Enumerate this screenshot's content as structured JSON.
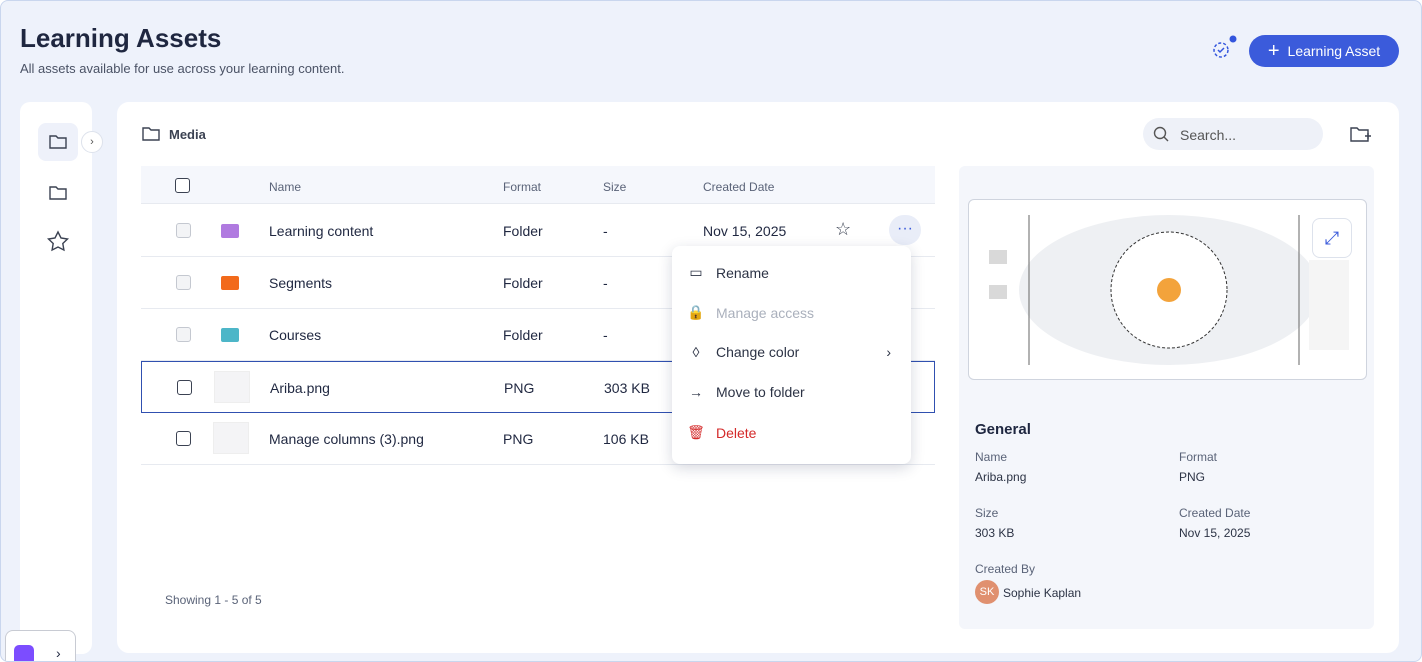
{
  "header": {
    "title": "Learning Assets",
    "subtitle": "All assets available for use across your learning content.",
    "button": "Learning Asset"
  },
  "breadcrumb": "Media",
  "search_placeholder": "Search...",
  "table": {
    "columns": [
      "Name",
      "Format",
      "Size",
      "Created Date"
    ],
    "rows": [
      {
        "name": "Learning content",
        "format": "Folder",
        "size": "-",
        "date": "Nov 15, 2025",
        "color": "#b07ae0",
        "kind": "folder"
      },
      {
        "name": "Segments",
        "format": "Folder",
        "size": "-",
        "color": "#f26a1b",
        "kind": "folder"
      },
      {
        "name": "Courses",
        "format": "Folder",
        "size": "-",
        "color": "#4db6c8",
        "kind": "folder"
      },
      {
        "name": "Ariba.png",
        "format": "PNG",
        "size": "303 KB",
        "kind": "image",
        "selected": true
      },
      {
        "name": "Manage columns (3).png",
        "format": "PNG",
        "size": "106 KB",
        "kind": "image"
      }
    ]
  },
  "menu": {
    "items": [
      "Rename",
      "Manage access",
      "Change color",
      "Move to folder",
      "Delete"
    ]
  },
  "footer": "Showing 1 - 5 of 5",
  "details": {
    "title": "General",
    "fields": [
      {
        "label": "Name",
        "value": "Ariba.png"
      },
      {
        "label": "Format",
        "value": "PNG"
      },
      {
        "label": "Size",
        "value": "303 KB"
      },
      {
        "label": "Created Date",
        "value": "Nov 15, 2025"
      }
    ],
    "created_by_label": "Created By",
    "created_by": "Sophie Kaplan",
    "initials": "SK"
  }
}
